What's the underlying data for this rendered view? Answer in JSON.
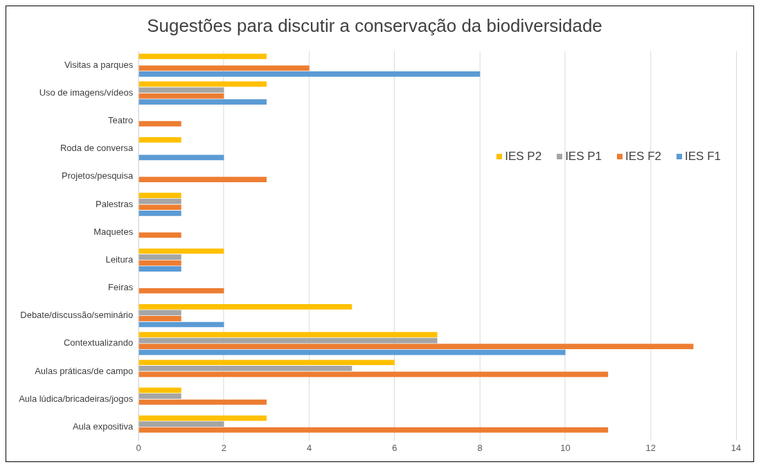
{
  "chart_data": {
    "type": "bar",
    "orientation": "horizontal",
    "title": "Sugestões para discutir a conservação da biodiversidade",
    "categories": [
      "Visitas a parques",
      "Uso de imagens/vídeos",
      "Teatro",
      "Roda de conversa",
      "Projetos/pesquisa",
      "Palestras",
      "Maquetes",
      "Leitura",
      "Feiras",
      "Debate/discussão/seminário",
      "Contextualizando",
      "Aulas práticas/de campo",
      "Aula lúdica/bricadeiras/jogos",
      "Aula expositiva"
    ],
    "series": [
      {
        "name": "IES P2",
        "color": "#ffc000",
        "values": [
          3,
          3,
          0,
          1,
          0,
          1,
          0,
          2,
          0,
          5,
          7,
          6,
          1,
          3
        ]
      },
      {
        "name": "IES P1",
        "color": "#a5a5a5",
        "values": [
          0,
          2,
          0,
          0,
          0,
          1,
          0,
          1,
          0,
          1,
          7,
          5,
          1,
          2
        ]
      },
      {
        "name": "IES F2",
        "color": "#ed7d31",
        "values": [
          4,
          2,
          1,
          0,
          3,
          1,
          1,
          1,
          2,
          1,
          13,
          11,
          3,
          11
        ]
      },
      {
        "name": "IES F1",
        "color": "#5b9bd5",
        "values": [
          8,
          3,
          0,
          2,
          0,
          1,
          0,
          1,
          0,
          2,
          10,
          0,
          0,
          0
        ]
      }
    ],
    "xlim": [
      0,
      14
    ],
    "xticks": [
      0,
      2,
      4,
      6,
      8,
      10,
      12,
      14
    ],
    "grid": "x",
    "legend": "top right"
  }
}
